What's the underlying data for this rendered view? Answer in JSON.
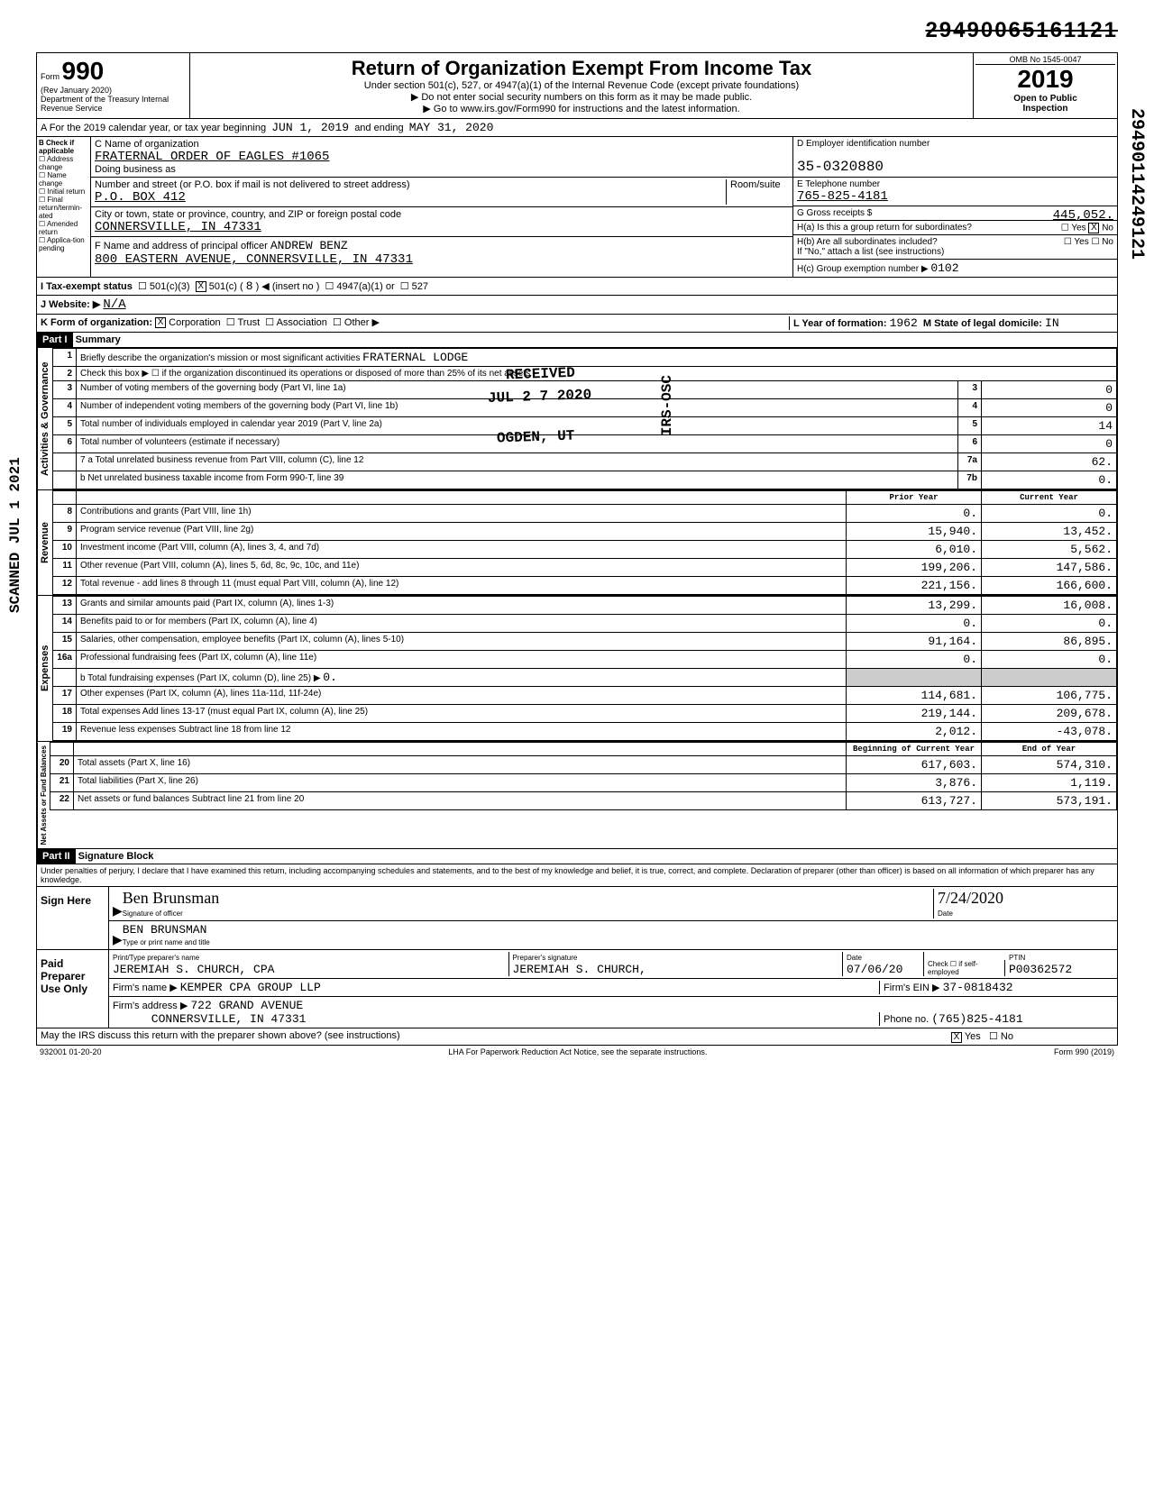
{
  "top_id": "29490065161121",
  "side_id": "29490114249121",
  "form": {
    "number": "990",
    "rev": "(Rev January 2020)",
    "dept": "Department of the Treasury\nInternal Revenue Service",
    "title": "Return of Organization Exempt From Income Tax",
    "subtitle1": "Under section 501(c), 527, or 4947(a)(1) of the Internal Revenue Code (except private foundations)",
    "subtitle2": "▶ Do not enter social security numbers on this form as it may be made public.",
    "subtitle3": "▶ Go to www.irs.gov/Form990 for instructions and the latest information.",
    "omb": "OMB No 1545-0047",
    "year": "2019",
    "open": "Open to Public",
    "inspection": "Inspection"
  },
  "period": {
    "label_a": "A For the 2019 calendar year, or tax year beginning",
    "begin": "JUN 1, 2019",
    "label_end": "and ending",
    "end": "MAY 31, 2020"
  },
  "checks": {
    "b_label": "B Check if applicable",
    "addr": "Address change",
    "name": "Name change",
    "initial": "Initial return",
    "final": "Final return/termin-ated",
    "amended": "Amended return",
    "applic": "Applica-tion pending"
  },
  "entity": {
    "c_label": "C Name of organization",
    "name": "FRATERNAL ORDER OF EAGLES #1065",
    "dba_label": "Doing business as",
    "addr_label": "Number and street (or P.O. box if mail is not delivered to street address)",
    "room_label": "Room/suite",
    "addr": "P.O. BOX 412",
    "city_label": "City or town, state or province, country, and ZIP or foreign postal code",
    "city": "CONNERSVILLE, IN  47331",
    "f_label": "F Name and address of principal officer",
    "officer": "ANDREW BENZ",
    "officer_addr": "800 EASTERN AVENUE, CONNERSVILLE, IN 47331"
  },
  "right": {
    "d_label": "D Employer identification number",
    "ein": "35-0320880",
    "e_label": "E Telephone number",
    "phone": "765-825-4181",
    "g_label": "G Gross receipts $",
    "gross": "445,052.",
    "h1a": "H(a) Is this a group return for subordinates?",
    "h1a_yes": "Yes",
    "h1a_no": "No",
    "h1b": "H(b) Are all subordinates included?",
    "h1b_note": "If \"No,\" attach a list (see instructions)",
    "hc": "H(c) Group exemption number ▶",
    "hc_val": "0102"
  },
  "status": {
    "i_label": "I Tax-exempt status",
    "c3": "501(c)(3)",
    "c": "501(c) (",
    "c_num": "8",
    "insert": ") ◀ (insert no )",
    "a4947": "4947(a)(1) or",
    "s527": "527",
    "j_label": "J Website: ▶",
    "website": "N/A",
    "k_label": "K Form of organization:",
    "corp": "Corporation",
    "trust": "Trust",
    "assoc": "Association",
    "other": "Other ▶",
    "l_label": "L Year of formation:",
    "l_val": "1962",
    "m_label": "M State of legal domicile:",
    "m_val": "IN"
  },
  "part1": {
    "hdr": "Part I",
    "title": "Summary",
    "line1_label": "Briefly describe the organization's mission or most significant activities",
    "line1_val": "FRATERNAL LODGE",
    "line2": "Check this box ▶ ☐ if the organization discontinued its operations or disposed of more than 25% of its net assets",
    "line3": "Number of voting members of the governing body (Part VI, line 1a)",
    "line4": "Number of independent voting members of the governing body (Part VI, line 1b)",
    "line5": "Total number of individuals employed in calendar year 2019 (Part V, line 2a)",
    "line6": "Total number of volunteers (estimate if necessary)",
    "line7a": "7 a Total unrelated business revenue from Part VIII, column (C), line 12",
    "line7b": "b Net unrelated business taxable income from Form 990-T, line 39",
    "v3": "0",
    "v4": "0",
    "v5": "14",
    "v6": "0",
    "v7a": "62.",
    "v7b": "0.",
    "prior_hdr": "Prior Year",
    "curr_hdr": "Current Year",
    "rows": [
      {
        "n": "8",
        "label": "Contributions and grants (Part VIII, line 1h)",
        "prior": "0.",
        "curr": "0."
      },
      {
        "n": "9",
        "label": "Program service revenue (Part VIII, line 2g)",
        "prior": "15,940.",
        "curr": "13,452."
      },
      {
        "n": "10",
        "label": "Investment income (Part VIII, column (A), lines 3, 4, and 7d)",
        "prior": "6,010.",
        "curr": "5,562."
      },
      {
        "n": "11",
        "label": "Other revenue (Part VIII, column (A), lines 5, 6d, 8c, 9c, 10c, and 11e)",
        "prior": "199,206.",
        "curr": "147,586."
      },
      {
        "n": "12",
        "label": "Total revenue - add lines 8 through 11 (must equal Part VIII, column (A), line 12)",
        "prior": "221,156.",
        "curr": "166,600."
      },
      {
        "n": "13",
        "label": "Grants and similar amounts paid (Part IX, column (A), lines 1-3)",
        "prior": "13,299.",
        "curr": "16,008."
      },
      {
        "n": "14",
        "label": "Benefits paid to or for members (Part IX, column (A), line 4)",
        "prior": "0.",
        "curr": "0."
      },
      {
        "n": "15",
        "label": "Salaries, other compensation, employee benefits (Part IX, column (A), lines 5-10)",
        "prior": "91,164.",
        "curr": "86,895."
      },
      {
        "n": "16a",
        "label": "Professional fundraising fees (Part IX, column (A), line 11e)",
        "prior": "0.",
        "curr": "0."
      }
    ],
    "line16b": "b Total fundraising expenses (Part IX, column (D), line 25) ▶",
    "line16b_val": "0.",
    "rows2": [
      {
        "n": "17",
        "label": "Other expenses (Part IX, column (A), lines 11a-11d, 11f-24e)",
        "prior": "114,681.",
        "curr": "106,775."
      },
      {
        "n": "18",
        "label": "Total expenses Add lines 13-17 (must equal Part IX, column (A), line 25)",
        "prior": "219,144.",
        "curr": "209,678."
      },
      {
        "n": "19",
        "label": "Revenue less expenses Subtract line 18 from line 12",
        "prior": "2,012.",
        "curr": "-43,078."
      }
    ],
    "begin_hdr": "Beginning of Current Year",
    "end_hdr": "End of Year",
    "rows3": [
      {
        "n": "20",
        "label": "Total assets (Part X, line 16)",
        "prior": "617,603.",
        "curr": "574,310."
      },
      {
        "n": "21",
        "label": "Total liabilities (Part X, line 26)",
        "prior": "3,876.",
        "curr": "1,119."
      },
      {
        "n": "22",
        "label": "Net assets or fund balances Subtract line 21 from line 20",
        "prior": "613,727.",
        "curr": "573,191."
      }
    ],
    "sections": {
      "gov": "Activities & Governance",
      "rev": "Revenue",
      "exp": "Expenses",
      "net": "Net Assets or Fund Balances"
    }
  },
  "part2": {
    "hdr": "Part II",
    "title": "Signature Block",
    "perjury": "Under penalties of perjury, I declare that I have examined this return, including accompanying schedules and statements, and to the best of my knowledge and belief, it is true, correct, and complete. Declaration of preparer (other than officer) is based on all information of which preparer has any knowledge.",
    "sign_here": "Sign Here",
    "sig_script": "Ben Brunsman",
    "sig_label": "Signature of officer",
    "sig_date": "7/24/2020",
    "date_label": "Date",
    "print_name": "BEN BRUNSMAN",
    "print_label": "Type or print name and title",
    "paid": "Paid Preparer Use Only",
    "prep_name_label": "Print/Type preparer's name",
    "prep_name": "JEREMIAH S. CHURCH, CPA",
    "prep_sig_label": "Preparer's signature",
    "prep_sig": "JEREMIAH S. CHURCH,",
    "prep_date": "07/06/20",
    "check_label": "Check ☐ if self-employed",
    "ptin_label": "PTIN",
    "ptin": "P00362572",
    "firm_label": "Firm's name ▶",
    "firm": "KEMPER CPA GROUP LLP",
    "firm_ein_label": "Firm's EIN ▶",
    "firm_ein": "37-0818432",
    "firm_addr_label": "Firm's address ▶",
    "firm_addr1": "722 GRAND AVENUE",
    "firm_addr2": "CONNERSVILLE, IN 47331",
    "phone_label": "Phone no.",
    "firm_phone": "(765)825-4181",
    "discuss": "May the IRS discuss this return with the preparer shown above? (see instructions)",
    "discuss_yes": "Yes",
    "discuss_no": "No"
  },
  "footer": {
    "code": "932001 01-20-20",
    "lha": "LHA For Paperwork Reduction Act Notice, see the separate instructions.",
    "form": "Form 990 (2019)"
  },
  "stamps": {
    "received": "RECEIVED",
    "date": "JUL 2 7 2020",
    "ogden": "OGDEN, UT",
    "irs": "IRS-OSC",
    "scanned": "SCANNED JUL 1 2021"
  }
}
